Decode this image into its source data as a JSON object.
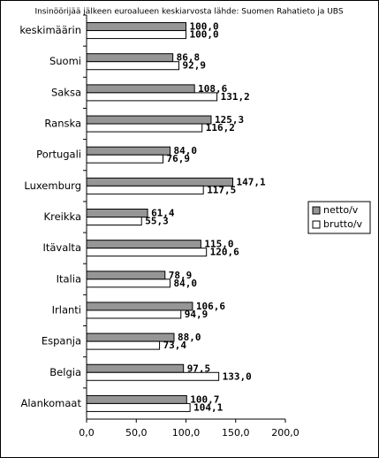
{
  "chart_data": {
    "type": "bar",
    "orientation": "horizontal",
    "title": "Insinöörijää jälkeen euroalueen keskiarvosta lähde: Suomen  Rahatieto ja UBS",
    "categories": [
      "keskimäärin",
      "Suomi",
      "Saksa",
      "Ranska",
      "Portugali",
      "Luxemburg",
      "Kreikka",
      "Itävalta",
      "Italia",
      "Irlanti",
      "Espanja",
      "Belgia",
      "Alankomaat"
    ],
    "series": [
      {
        "name": "netto/v",
        "color": "#969696",
        "values": [
          100.0,
          86.8,
          108.6,
          125.3,
          84.0,
          147.1,
          61.4,
          115.0,
          78.9,
          106.6,
          88.0,
          97.5,
          100.7
        ],
        "value_labels": [
          "100,0",
          "86,8",
          "108,6",
          "125,3",
          "84,0",
          "147,1",
          "61,4",
          "115,0",
          "78,9",
          "106,6",
          "88,0",
          "97,5",
          "100,7"
        ]
      },
      {
        "name": "brutto/v",
        "color": "#ffffff",
        "values": [
          100.0,
          92.9,
          131.2,
          116.2,
          76.9,
          117.5,
          55.3,
          120.6,
          84.0,
          94.9,
          73.4,
          133.0,
          104.1
        ],
        "value_labels": [
          "100,0",
          "92,9",
          "131,2",
          "116,2",
          "76,9",
          "117,5",
          "55,3",
          "120,6",
          "84,0",
          "94,9",
          "73,4",
          "133,0",
          "104,1"
        ]
      }
    ],
    "xlim": [
      0,
      200
    ],
    "xticks": [
      {
        "value": 0,
        "label": "0,0"
      },
      {
        "value": 50,
        "label": "50,0"
      },
      {
        "value": 100,
        "label": "100,0"
      },
      {
        "value": 150,
        "label": "150,0"
      },
      {
        "value": 200,
        "label": "200,0"
      }
    ],
    "grid": false,
    "legend": "right"
  }
}
